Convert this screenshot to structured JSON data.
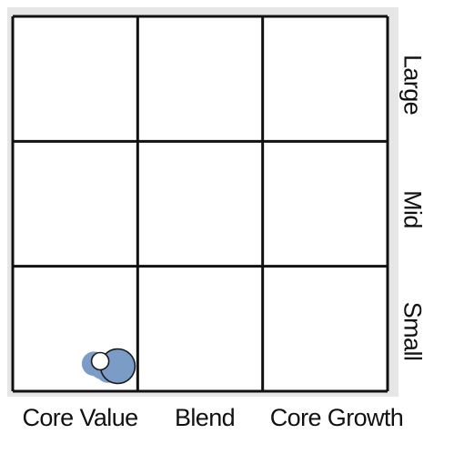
{
  "chart_data": {
    "type": "scatter",
    "title": "",
    "xlabel": "",
    "ylabel": "",
    "columns": [
      "Core Value",
      "Blend",
      "Core Growth"
    ],
    "rows": [
      "Large",
      "Mid",
      "Small"
    ],
    "grid": true,
    "points": [
      {
        "style_x": 0.84,
        "size_y": 0.2,
        "relative_size": 1.0,
        "fill": "#7a9cc6",
        "stroke": "#1a1a1a",
        "outlined": true
      },
      {
        "style_x": 0.7,
        "size_y": 0.24,
        "relative_size": 0.25,
        "fill": "#ffffff",
        "stroke": "#1a1a1a",
        "outlined": true
      },
      {
        "style_x": 0.72,
        "size_y": 0.2,
        "relative_size": 0.6,
        "fill": "#7a9cc6",
        "stroke": "#7a9cc6",
        "outlined": false
      },
      {
        "style_x": 0.65,
        "size_y": 0.22,
        "relative_size": 0.5,
        "fill": "#7a9cc6",
        "stroke": "#7a9cc6",
        "outlined": false
      },
      {
        "style_x": 0.76,
        "size_y": 0.16,
        "relative_size": 0.45,
        "fill": "#7a9cc6",
        "stroke": "#7a9cc6",
        "outlined": false
      }
    ],
    "colors": {
      "grid_line": "#111111",
      "background_shade": "#e6e6e6",
      "bubble": "#7a9cc6",
      "text": "#111111"
    }
  }
}
